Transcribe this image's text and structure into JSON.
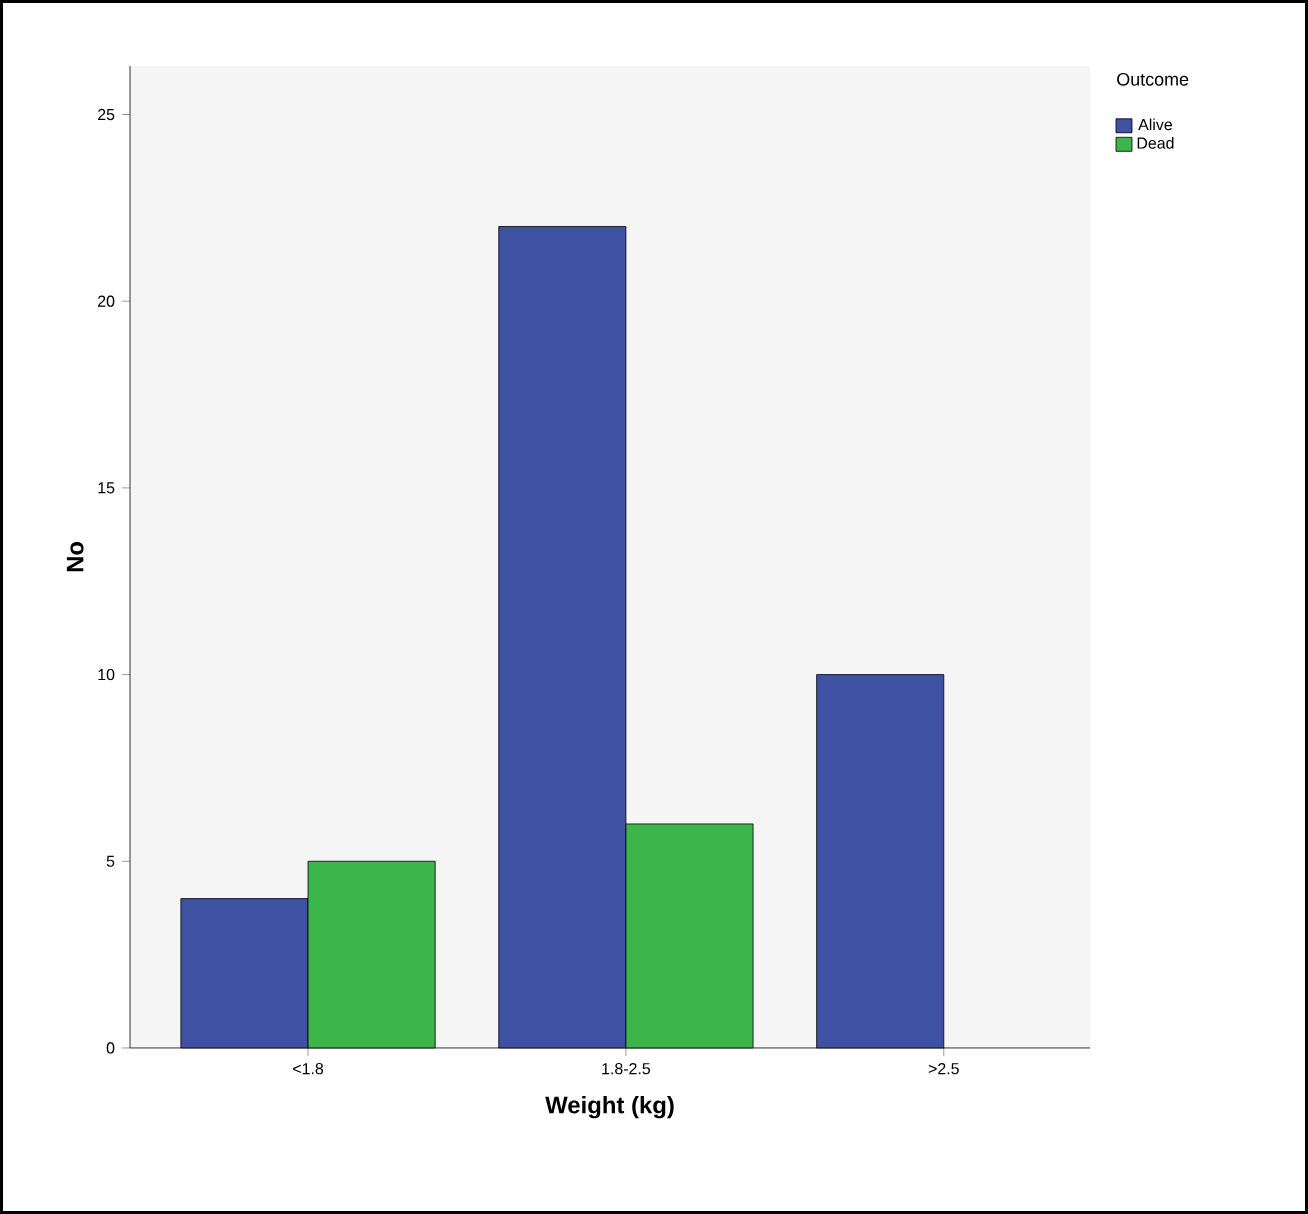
{
  "chart_data": {
    "type": "bar",
    "xlabel": "Weight (kg)",
    "ylabel": "No",
    "legend_title": "Outcome",
    "categories": [
      "<1.8",
      "1.8-2.5",
      ">2.5"
    ],
    "series": [
      {
        "name": "Alive",
        "color": "#3f51a3",
        "values": [
          4,
          22,
          10
        ]
      },
      {
        "name": "Dead",
        "color": "#3cb54a",
        "values": [
          5,
          6,
          null
        ]
      }
    ],
    "ylim": [
      0,
      26.3
    ],
    "yticks": [
      0,
      5,
      10,
      15,
      20,
      25
    ],
    "grid": false,
    "legend": "top right"
  }
}
